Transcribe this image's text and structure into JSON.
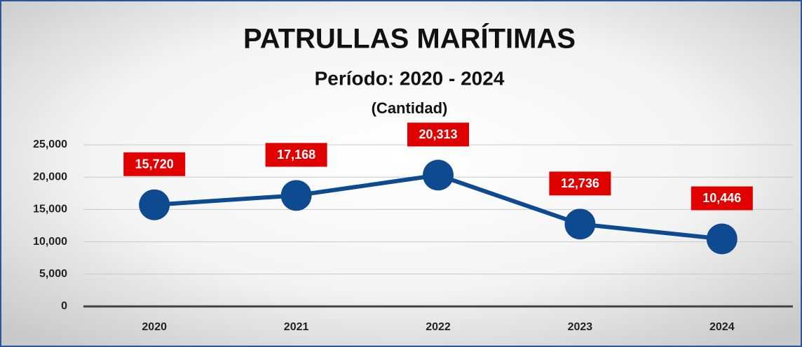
{
  "chart_data": {
    "type": "line",
    "title": "PATRULLAS MARÍTIMAS",
    "subtitle": "Período: 2020 - 2024",
    "unit_label": "(Cantidad)",
    "categories": [
      "2020",
      "2021",
      "2022",
      "2023",
      "2024"
    ],
    "series": [
      {
        "name": "Patrullas",
        "color": "#0e4a8f",
        "values": [
          15720,
          17168,
          20313,
          12736,
          10446
        ],
        "value_labels": [
          "15,720",
          "17,168",
          "20,313",
          "12,736",
          "10,446"
        ]
      }
    ],
    "label_color": "#e00000",
    "ylim": [
      0,
      25000
    ],
    "yticks": [
      0,
      {
        "value": 5000,
        "label": "5,000"
      },
      {
        "value": 10000,
        "label": "10,000"
      },
      {
        "value": 15000,
        "label": "15,000"
      },
      {
        "value": 20000,
        "label": "20,000"
      },
      {
        "value": 25000,
        "label": "25,000"
      }
    ],
    "grid": true
  }
}
